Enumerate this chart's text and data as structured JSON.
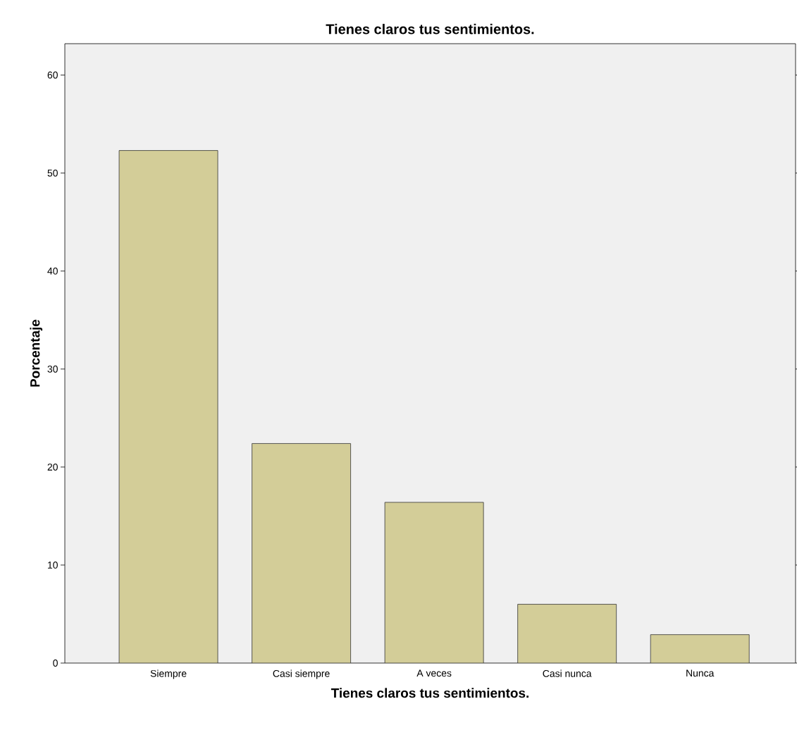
{
  "chart_data": {
    "type": "bar",
    "title": "Tienes claros tus sentimientos.",
    "xlabel": "Tienes claros tus sentimientos.",
    "ylabel": "Porcentaje",
    "categories": [
      "Siempre",
      "Casi siempre",
      "A veces",
      "Casi nunca",
      "Nunca"
    ],
    "values": [
      52.3,
      22.4,
      16.4,
      6.0,
      2.9
    ],
    "color": "#d3cd98",
    "ylim": [
      0,
      63.2
    ],
    "yticks": [
      0,
      10,
      20,
      30,
      40,
      50,
      60
    ]
  }
}
